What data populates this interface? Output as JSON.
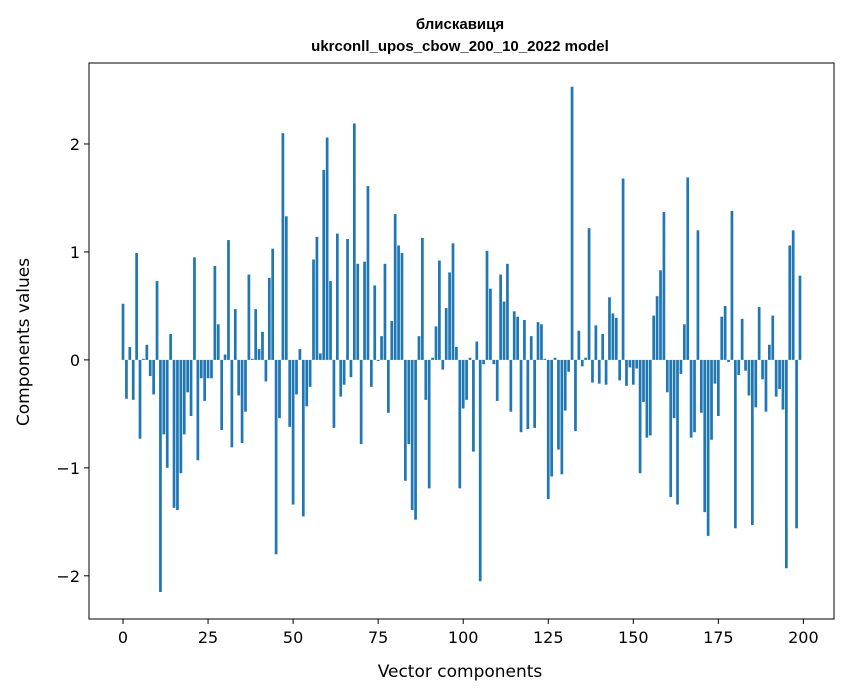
{
  "chart_data": {
    "type": "bar",
    "title": "блискавиця",
    "subtitle": "ukrconll_upos_cbow_200_10_2022 model",
    "xlabel": "Vector components",
    "ylabel": "Components values",
    "xlim": [
      -10,
      209
    ],
    "ylim": [
      -2.4,
      2.75
    ],
    "xticks": [
      0,
      25,
      50,
      75,
      100,
      125,
      150,
      175,
      200
    ],
    "yticks": [
      -2,
      -1,
      0,
      1,
      2
    ],
    "ytick_labels": [
      "−2",
      "−1",
      "0",
      "1",
      "2"
    ],
    "bar_color": "#1f77b4",
    "grid": false,
    "values": [
      0.52,
      -0.36,
      0.12,
      -0.37,
      0.99,
      -0.73,
      0.01,
      0.14,
      -0.15,
      -0.32,
      0.73,
      -2.15,
      -0.69,
      -1.0,
      0.24,
      -1.37,
      -1.39,
      -1.05,
      -0.69,
      -0.3,
      -0.52,
      0.95,
      -0.93,
      -0.17,
      -0.38,
      -0.17,
      -0.17,
      0.87,
      0.33,
      -0.65,
      0.05,
      1.11,
      -0.81,
      0.47,
      -0.33,
      -0.77,
      -0.48,
      0.79,
      0.01,
      0.47,
      0.1,
      0.26,
      -0.2,
      0.76,
      1.03,
      -1.8,
      -0.54,
      2.1,
      1.33,
      -0.62,
      -1.34,
      -0.32,
      0.1,
      -1.45,
      -0.43,
      -0.25,
      0.93,
      1.14,
      0.06,
      1.76,
      2.06,
      0.73,
      -0.63,
      1.17,
      -0.34,
      -0.23,
      1.12,
      -0.16,
      2.19,
      0.89,
      -0.78,
      0.91,
      1.61,
      -0.25,
      0.69,
      -0.01,
      0.22,
      0.89,
      -0.49,
      0.36,
      1.35,
      1.06,
      0.99,
      -1.12,
      -0.78,
      -1.39,
      -1.48,
      0.22,
      1.13,
      -0.37,
      -1.19,
      0.02,
      0.31,
      0.92,
      -0.09,
      0.48,
      0.81,
      1.08,
      0.12,
      -1.19,
      -0.45,
      -0.37,
      0.02,
      -0.85,
      0.17,
      -2.05,
      -0.04,
      1.01,
      0.66,
      -0.04,
      -0.38,
      0.79,
      0.54,
      0.89,
      -0.48,
      0.45,
      0.4,
      -0.67,
      0.37,
      -0.64,
      0.22,
      -0.63,
      0.35,
      0.33,
      0.01,
      -1.29,
      -1.08,
      0.02,
      -0.83,
      -1.06,
      -0.47,
      -0.11,
      2.53,
      -0.66,
      0.27,
      -0.06,
      0.02,
      1.22,
      -0.21,
      0.32,
      -0.22,
      0.24,
      -0.23,
      0.58,
      0.43,
      0.39,
      -0.19,
      1.68,
      -0.24,
      -0.07,
      -0.23,
      -0.08,
      -1.05,
      -0.39,
      -0.72,
      -0.7,
      0.41,
      0.59,
      0.83,
      1.37,
      -0.3,
      -1.27,
      -0.54,
      -1.34,
      -0.13,
      0.33,
      1.69,
      -0.72,
      -0.67,
      1.2,
      -0.49,
      -1.41,
      -1.63,
      -0.74,
      -0.22,
      -0.52,
      0.4,
      0.5,
      -0.02,
      1.38,
      -1.56,
      -0.14,
      0.38,
      -0.1,
      -0.33,
      -1.53,
      -0.44,
      0.49,
      -0.18,
      -0.48,
      0.14,
      0.41,
      -0.34,
      -0.27,
      -0.46,
      -1.93,
      1.06,
      1.2,
      -1.56,
      0.78
    ]
  }
}
